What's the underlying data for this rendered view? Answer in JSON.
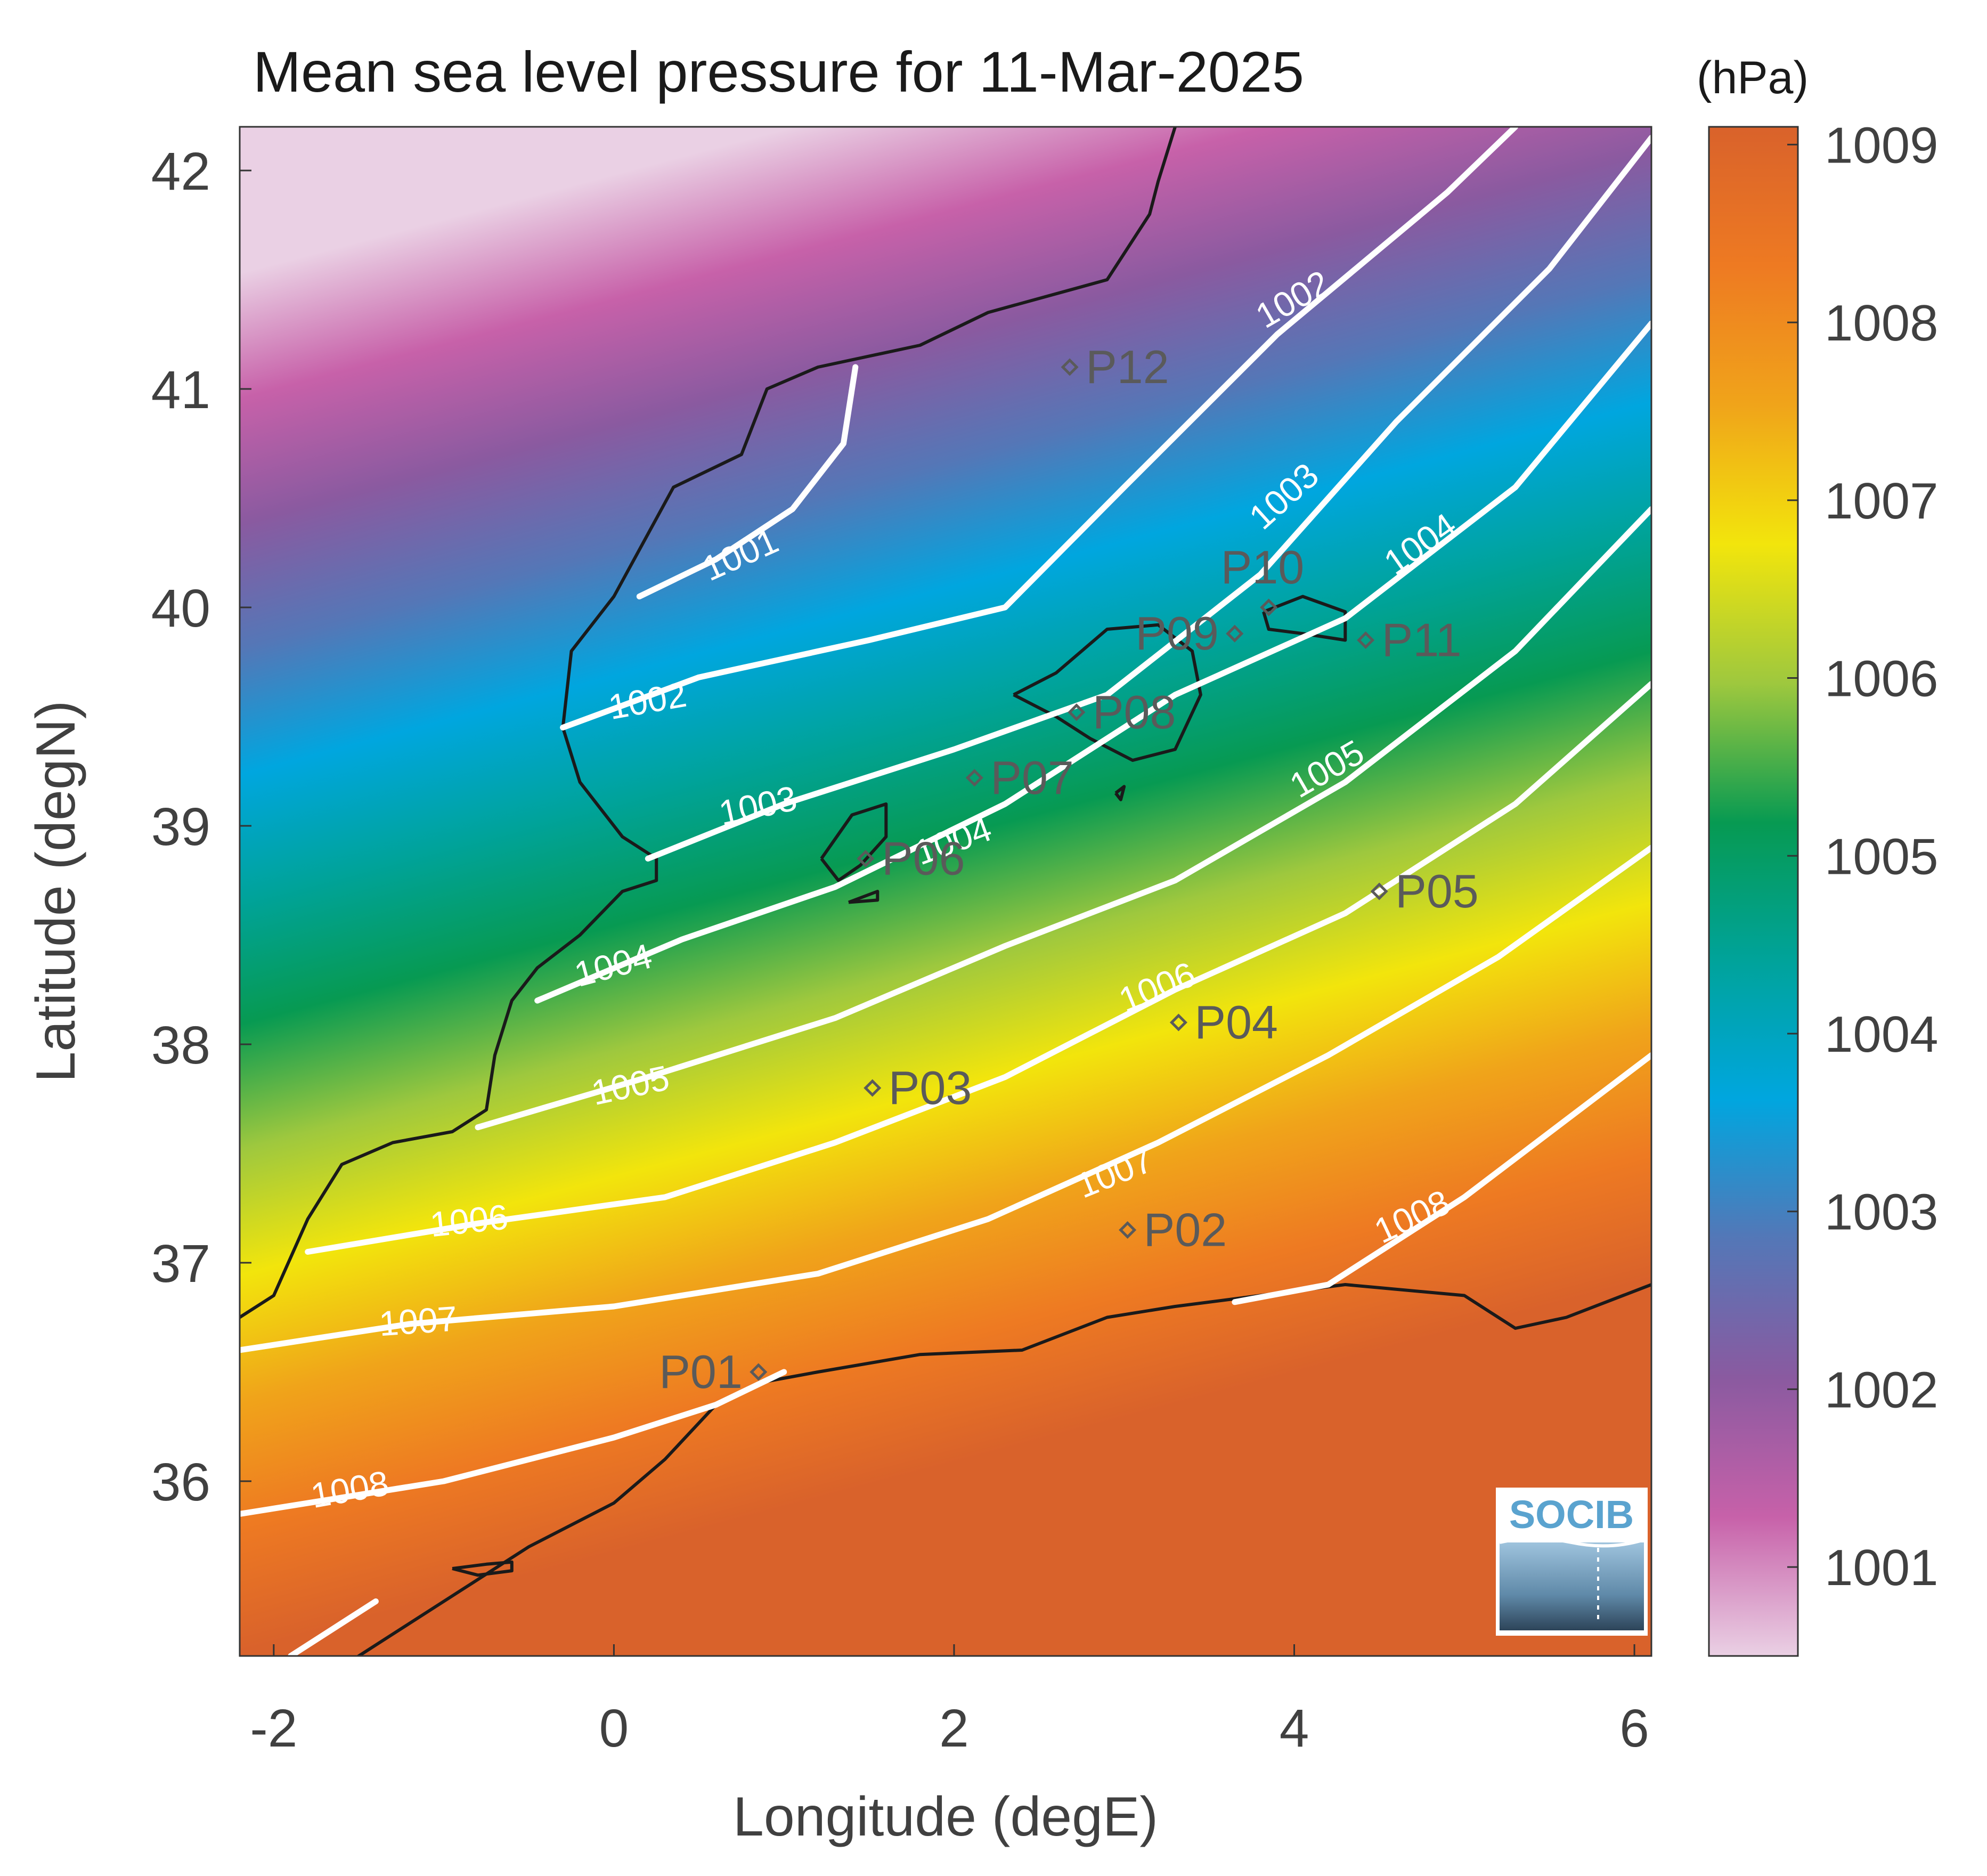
{
  "title": "Mean sea level pressure for 11-Mar-2025",
  "xlabel": "Longitude (degE)",
  "ylabel": "Latitude (degN)",
  "colorbar": {
    "unit": "(hPa)",
    "range": [
      1000.5,
      1009.1
    ],
    "ticks": [
      {
        "value": 1001,
        "label": "1001"
      },
      {
        "value": 1002,
        "label": "1002"
      },
      {
        "value": 1003,
        "label": "1003"
      },
      {
        "value": 1004,
        "label": "1004"
      },
      {
        "value": 1005,
        "label": "1005"
      },
      {
        "value": 1006,
        "label": "1006"
      },
      {
        "value": 1007,
        "label": "1007"
      },
      {
        "value": 1008,
        "label": "1008"
      },
      {
        "value": 1009,
        "label": "1009"
      }
    ],
    "colormap": [
      "#ead0e4",
      "#c761a9",
      "#8a5aa0",
      "#5477b7",
      "#00a6df",
      "#00a39a",
      "#079a52",
      "#9ec83e",
      "#f2e50c",
      "#f0a41a",
      "#ee7a22",
      "#d9622b"
    ]
  },
  "xticks": [
    {
      "value": -2,
      "label": "-2"
    },
    {
      "value": 0,
      "label": "0"
    },
    {
      "value": 2,
      "label": "2"
    },
    {
      "value": 4,
      "label": "4"
    },
    {
      "value": 6,
      "label": "6"
    }
  ],
  "yticks": [
    {
      "value": 36,
      "label": "36"
    },
    {
      "value": 37,
      "label": "37"
    },
    {
      "value": 38,
      "label": "38"
    },
    {
      "value": 39,
      "label": "39"
    },
    {
      "value": 40,
      "label": "40"
    },
    {
      "value": 41,
      "label": "41"
    },
    {
      "value": 42,
      "label": "42"
    }
  ],
  "map": {
    "lon_range": [
      -2.2,
      6.1
    ],
    "lat_range": [
      35.2,
      42.2
    ],
    "coastline_color": "#1a1a1a",
    "contour_color": "#ffffff",
    "station_color": "#5a5a5a"
  },
  "contours": [
    {
      "level": "1001",
      "label": "1001",
      "points": [
        [
          0.15,
          40.05
        ],
        [
          0.6,
          40.22
        ],
        [
          1.05,
          40.45
        ],
        [
          1.35,
          40.75
        ],
        [
          1.42,
          41.1
        ]
      ],
      "label_at": [
        0.75,
        40.23
      ],
      "angle": -24
    },
    {
      "level": "1002",
      "label": "1002",
      "points": [
        [
          -0.3,
          39.45
        ],
        [
          0.5,
          39.68
        ],
        [
          1.5,
          39.85
        ],
        [
          2.3,
          40.0
        ],
        [
          3.0,
          40.55
        ],
        [
          3.9,
          41.25
        ],
        [
          4.9,
          41.9
        ],
        [
          5.3,
          42.2
        ]
      ],
      "label_at": [
        4.0,
        41.4
      ],
      "angle": -30
    },
    {
      "level": "1002",
      "label": "1002",
      "points": [],
      "label_at": [
        0.2,
        39.56
      ],
      "angle": -10
    },
    {
      "level": "1003",
      "label": "1003",
      "points": [
        [
          0.2,
          38.85
        ],
        [
          1.0,
          39.1
        ],
        [
          2.0,
          39.35
        ],
        [
          2.9,
          39.6
        ],
        [
          3.8,
          40.15
        ],
        [
          4.6,
          40.85
        ],
        [
          5.5,
          41.55
        ],
        [
          6.1,
          42.15
        ]
      ],
      "label_at": [
        0.85,
        39.08
      ],
      "angle": -12
    },
    {
      "level": "1003",
      "label": "1003",
      "points": [],
      "label_at": [
        3.95,
        40.5
      ],
      "angle": -42
    },
    {
      "level": "1004",
      "label": "1004",
      "points": [
        [
          -0.45,
          38.2
        ],
        [
          0.4,
          38.48
        ],
        [
          1.3,
          38.72
        ],
        [
          2.3,
          39.1
        ],
        [
          3.3,
          39.6
        ],
        [
          4.3,
          39.95
        ],
        [
          5.3,
          40.55
        ],
        [
          6.1,
          41.3
        ]
      ],
      "label_at": [
        0.0,
        38.35
      ],
      "angle": -15
    },
    {
      "level": "1004",
      "label": "1004",
      "points": [],
      "label_at": [
        2.0,
        38.92
      ],
      "angle": -20
    },
    {
      "level": "1004",
      "label": "1004",
      "points": [],
      "label_at": [
        4.75,
        40.28
      ],
      "angle": -35
    },
    {
      "level": "1005",
      "label": "1005",
      "points": [
        [
          -0.8,
          37.62
        ],
        [
          0.2,
          37.85
        ],
        [
          1.3,
          38.12
        ],
        [
          2.3,
          38.45
        ],
        [
          3.3,
          38.75
        ],
        [
          4.3,
          39.2
        ],
        [
          5.3,
          39.8
        ],
        [
          6.1,
          40.45
        ]
      ],
      "label_at": [
        0.1,
        37.8
      ],
      "angle": -12
    },
    {
      "level": "1005",
      "label": "1005",
      "points": [],
      "label_at": [
        4.2,
        39.25
      ],
      "angle": -30
    },
    {
      "level": "1006",
      "label": "1006",
      "points": [
        [
          -1.8,
          37.05
        ],
        [
          -0.8,
          37.18
        ],
        [
          0.3,
          37.3
        ],
        [
          1.3,
          37.55
        ],
        [
          2.3,
          37.85
        ],
        [
          3.3,
          38.25
        ],
        [
          4.3,
          38.6
        ],
        [
          5.3,
          39.1
        ],
        [
          6.1,
          39.65
        ]
      ],
      "label_at": [
        -0.85,
        37.18
      ],
      "angle": -6
    },
    {
      "level": "1006",
      "label": "1006",
      "points": [],
      "label_at": [
        3.2,
        38.25
      ],
      "angle": -22
    },
    {
      "level": "1007",
      "label": "1007",
      "points": [
        [
          -2.2,
          36.6
        ],
        [
          -1.2,
          36.72
        ],
        [
          0.0,
          36.8
        ],
        [
          1.2,
          36.95
        ],
        [
          2.2,
          37.2
        ],
        [
          3.2,
          37.55
        ],
        [
          4.2,
          37.95
        ],
        [
          5.2,
          38.4
        ],
        [
          6.1,
          38.9
        ]
      ],
      "label_at": [
        -1.15,
        36.72
      ],
      "angle": -4
    },
    {
      "level": "1007",
      "label": "1007",
      "points": [],
      "label_at": [
        2.95,
        37.4
      ],
      "angle": -22
    },
    {
      "level": "1008",
      "label": "1008",
      "points": [
        [
          -2.2,
          35.85
        ],
        [
          -1.0,
          36.0
        ],
        [
          0.0,
          36.2
        ],
        [
          0.6,
          36.35
        ],
        [
          1.0,
          36.5
        ]
      ],
      "label_at": [
        -1.55,
        35.95
      ],
      "angle": -10
    },
    {
      "level": "1008",
      "label": "1008",
      "points": [
        [
          3.65,
          36.82
        ],
        [
          4.2,
          36.9
        ],
        [
          5.0,
          37.3
        ],
        [
          6.1,
          37.95
        ]
      ],
      "label_at": [
        4.7,
        37.2
      ],
      "angle": -25
    },
    {
      "level": "1008",
      "label": "",
      "points": [
        [
          -1.9,
          35.2
        ],
        [
          -1.4,
          35.45
        ]
      ],
      "label_at": null,
      "angle": 0
    }
  ],
  "stations": [
    {
      "name": "P01",
      "lon": 0.85,
      "lat": 36.5,
      "side": "left"
    },
    {
      "name": "P02",
      "lon": 3.02,
      "lat": 37.15,
      "side": "right"
    },
    {
      "name": "P03",
      "lon": 1.52,
      "lat": 37.8,
      "side": "right"
    },
    {
      "name": "P04",
      "lon": 3.32,
      "lat": 38.1,
      "side": "right"
    },
    {
      "name": "P05",
      "lon": 4.5,
      "lat": 38.7,
      "side": "right"
    },
    {
      "name": "P06",
      "lon": 1.48,
      "lat": 38.85,
      "side": "right"
    },
    {
      "name": "P07",
      "lon": 2.12,
      "lat": 39.22,
      "side": "right"
    },
    {
      "name": "P08",
      "lon": 2.72,
      "lat": 39.52,
      "side": "right"
    },
    {
      "name": "P09",
      "lon": 3.65,
      "lat": 39.88,
      "side": "left"
    },
    {
      "name": "P10",
      "lon": 3.85,
      "lat": 40.0,
      "side": "above"
    },
    {
      "name": "P11",
      "lon": 4.42,
      "lat": 39.85,
      "side": "right"
    },
    {
      "name": "P12",
      "lon": 2.68,
      "lat": 41.1,
      "side": "right"
    }
  ],
  "coastlines": {
    "iberia": [
      [
        -2.2,
        36.75
      ],
      [
        -2.0,
        36.85
      ],
      [
        -1.8,
        37.2
      ],
      [
        -1.6,
        37.45
      ],
      [
        -1.3,
        37.55
      ],
      [
        -0.95,
        37.6
      ],
      [
        -0.75,
        37.7
      ],
      [
        -0.7,
        37.95
      ],
      [
        -0.6,
        38.2
      ],
      [
        -0.45,
        38.35
      ],
      [
        -0.2,
        38.5
      ],
      [
        0.05,
        38.7
      ],
      [
        0.25,
        38.75
      ],
      [
        0.25,
        38.85
      ],
      [
        0.05,
        38.95
      ],
      [
        -0.2,
        39.2
      ],
      [
        -0.3,
        39.45
      ],
      [
        -0.25,
        39.8
      ],
      [
        0.0,
        40.05
      ],
      [
        0.35,
        40.55
      ],
      [
        0.75,
        40.7
      ],
      [
        0.9,
        41.0
      ],
      [
        1.2,
        41.1
      ],
      [
        1.8,
        41.2
      ],
      [
        2.2,
        41.35
      ],
      [
        2.9,
        41.5
      ],
      [
        3.15,
        41.8
      ],
      [
        3.2,
        41.95
      ],
      [
        3.3,
        42.2
      ]
    ],
    "africa": [
      [
        -1.6,
        35.15
      ],
      [
        -1.3,
        35.3
      ],
      [
        -0.9,
        35.5
      ],
      [
        -0.5,
        35.7
      ],
      [
        0.0,
        35.9
      ],
      [
        0.3,
        36.1
      ],
      [
        0.6,
        36.35
      ],
      [
        0.85,
        36.45
      ],
      [
        1.2,
        36.5
      ],
      [
        1.8,
        36.58
      ],
      [
        2.4,
        36.6
      ],
      [
        2.9,
        36.75
      ],
      [
        3.3,
        36.8
      ],
      [
        3.8,
        36.85
      ],
      [
        4.3,
        36.9
      ],
      [
        5.0,
        36.85
      ],
      [
        5.3,
        36.7
      ],
      [
        5.6,
        36.75
      ],
      [
        6.1,
        36.9
      ]
    ],
    "africa_islet": [
      [
        -0.95,
        35.6
      ],
      [
        -0.75,
        35.62
      ],
      [
        -0.6,
        35.63
      ],
      [
        -0.6,
        35.59
      ],
      [
        -0.8,
        35.57
      ],
      [
        -0.95,
        35.6
      ]
    ],
    "mallorca": [
      [
        2.35,
        39.6
      ],
      [
        2.6,
        39.7
      ],
      [
        2.9,
        39.9
      ],
      [
        3.2,
        39.92
      ],
      [
        3.4,
        39.8
      ],
      [
        3.45,
        39.6
      ],
      [
        3.3,
        39.35
      ],
      [
        3.05,
        39.3
      ],
      [
        2.8,
        39.4
      ],
      [
        2.6,
        39.5
      ],
      [
        2.35,
        39.6
      ]
    ],
    "menorca": [
      [
        3.82,
        39.98
      ],
      [
        4.05,
        40.05
      ],
      [
        4.3,
        39.98
      ],
      [
        4.3,
        39.85
      ],
      [
        4.05,
        39.88
      ],
      [
        3.85,
        39.9
      ],
      [
        3.82,
        39.98
      ]
    ],
    "ibiza": [
      [
        1.22,
        38.85
      ],
      [
        1.4,
        39.05
      ],
      [
        1.6,
        39.1
      ],
      [
        1.6,
        38.95
      ],
      [
        1.45,
        38.82
      ],
      [
        1.32,
        38.75
      ],
      [
        1.22,
        38.85
      ]
    ],
    "formentera": [
      [
        1.38,
        38.65
      ],
      [
        1.55,
        38.7
      ],
      [
        1.55,
        38.66
      ],
      [
        1.38,
        38.65
      ]
    ],
    "cabrera": [
      [
        2.95,
        39.15
      ],
      [
        3.0,
        39.18
      ],
      [
        2.98,
        39.12
      ],
      [
        2.95,
        39.15
      ]
    ]
  },
  "logo": {
    "text": "SOCIB"
  }
}
